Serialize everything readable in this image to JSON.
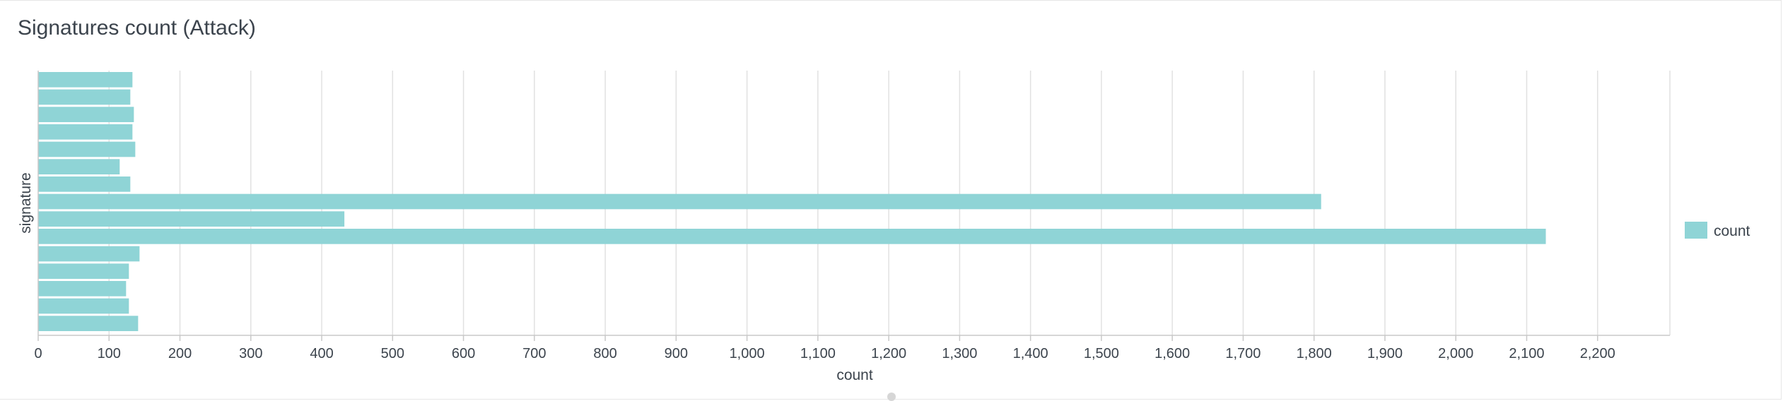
{
  "panel": {
    "title": "Signatures count (Attack)"
  },
  "colors": {
    "bar": "#8fd4d6",
    "grid": "#e1e1e1",
    "axis": "#c8c8c8",
    "text": "#3c444d"
  },
  "chart_data": {
    "type": "bar",
    "orientation": "horizontal",
    "title": "Signatures count (Attack)",
    "xlabel": "count",
    "ylabel": "signature",
    "xlim": [
      0,
      2300
    ],
    "x_ticks": [
      0,
      100,
      200,
      300,
      400,
      500,
      600,
      700,
      800,
      900,
      1000,
      1100,
      1200,
      1300,
      1400,
      1500,
      1600,
      1700,
      1800,
      1900,
      2000,
      2100,
      2200
    ],
    "x_tick_labels": [
      "0",
      "100",
      "200",
      "300",
      "400",
      "500",
      "600",
      "700",
      "800",
      "900",
      "1,000",
      "1,100",
      "1,200",
      "1,300",
      "1,400",
      "1,500",
      "1,600",
      "1,700",
      "1,800",
      "1,900",
      "2,000",
      "2,100",
      "2,200"
    ],
    "grid": true,
    "legend_position": "right",
    "categories": [
      "",
      "",
      "",
      "",
      "",
      "",
      "",
      "",
      "",
      "",
      "",
      "",
      "",
      "",
      ""
    ],
    "series": [
      {
        "name": "count",
        "values": [
          133,
          130,
          135,
          133,
          137,
          115,
          130,
          1810,
          432,
          2127,
          143,
          128,
          124,
          128,
          141
        ]
      }
    ]
  }
}
